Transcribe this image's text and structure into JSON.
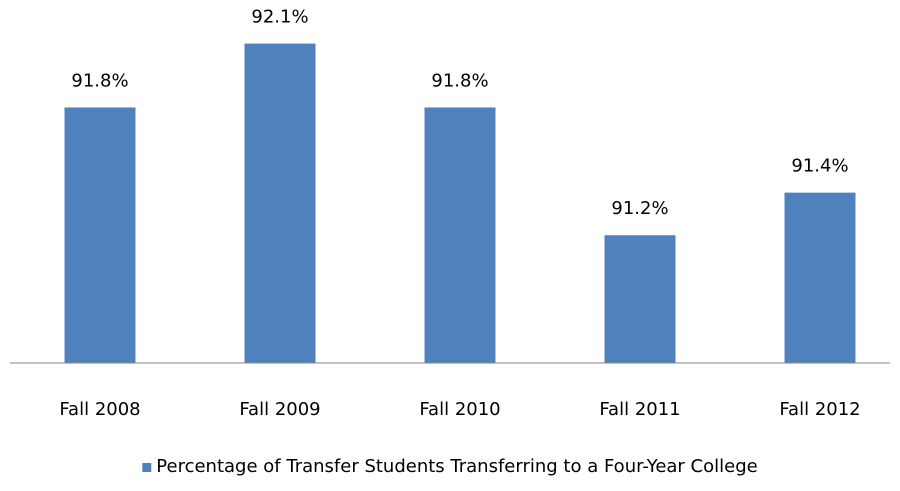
{
  "chart_data": {
    "type": "bar",
    "categories": [
      "Fall 2008",
      "Fall 2009",
      "Fall 2010",
      "Fall 2011",
      "Fall 2012"
    ],
    "series": [
      {
        "name": "Percentage of Transfer Students Transferring to a Four-Year College",
        "color": "#4f81bd",
        "values": [
          91.8,
          92.1,
          91.8,
          91.2,
          91.4
        ],
        "value_labels": [
          "91.8%",
          "92.1%",
          "91.8%",
          "91.2%",
          "91.4%"
        ]
      }
    ],
    "ylim": [
      90.6,
      92.3
    ],
    "legend": "bottom"
  }
}
